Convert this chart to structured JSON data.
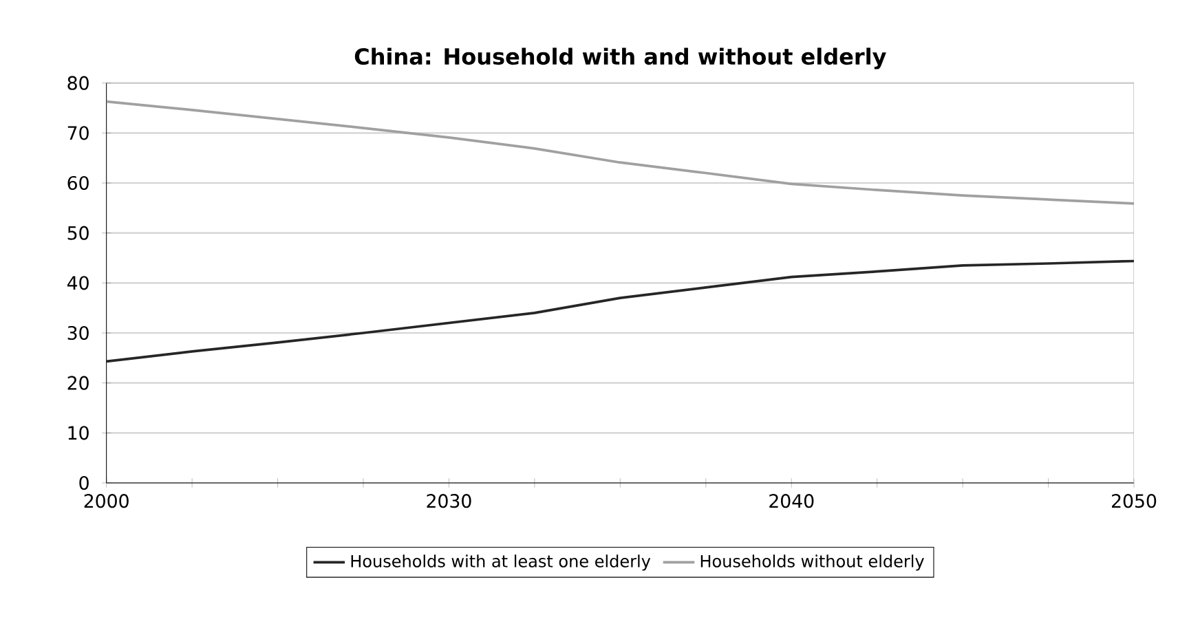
{
  "chart_data": {
    "type": "line",
    "title": "China: Household with and without elderly",
    "categories": [
      "2000",
      null,
      null,
      null,
      "2030",
      null,
      null,
      null,
      "2040",
      null,
      null,
      null,
      "2050"
    ],
    "series": [
      {
        "name": "Households with at least one elderly",
        "color": "#262626",
        "values": [
          24.3,
          26.3,
          28.1,
          30.0,
          32.0,
          34.0,
          37.0,
          39.1,
          41.2,
          42.3,
          43.5,
          43.9,
          44.4
        ]
      },
      {
        "name": "Households without elderly",
        "color": "#a0a0a0",
        "values": [
          76.3,
          74.6,
          72.8,
          71.0,
          69.1,
          66.9,
          64.1,
          62.0,
          59.8,
          58.6,
          57.5,
          56.7,
          55.9
        ]
      }
    ],
    "ylim": [
      0,
      80
    ],
    "yticks": [
      0,
      10,
      20,
      30,
      40,
      50,
      60,
      70,
      80
    ],
    "grid": "y",
    "legend": "bottom",
    "marker": "none",
    "line_style": "solid"
  }
}
